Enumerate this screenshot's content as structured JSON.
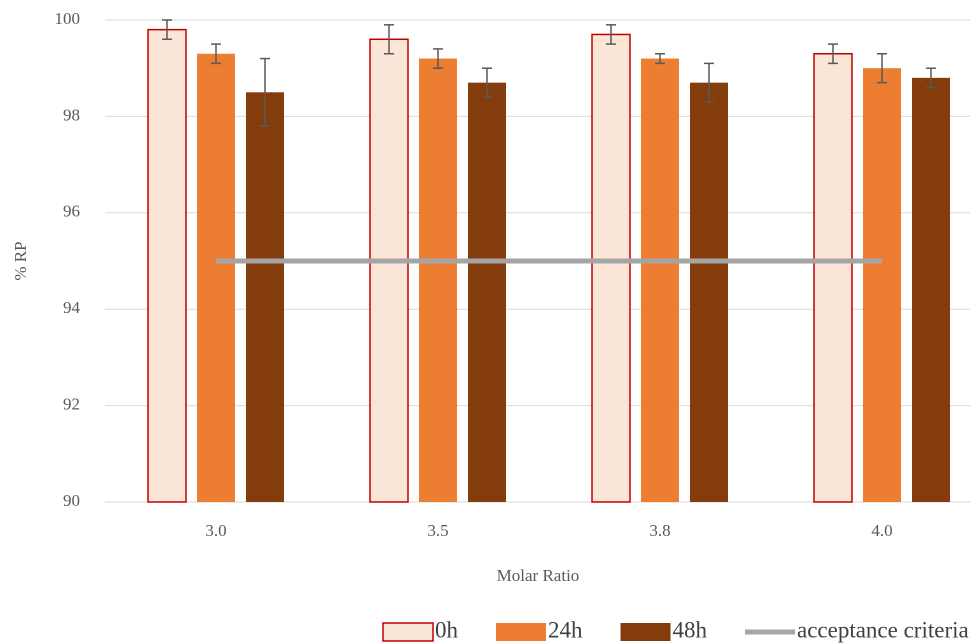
{
  "chart_data": {
    "type": "bar",
    "x_label": "Molar Ratio",
    "y_label": "% RP",
    "categories": [
      "3.0",
      "3.5",
      "3.8",
      "4.0"
    ],
    "series": [
      {
        "name": "0h",
        "type": "bar",
        "color": "#fbe5d6",
        "edge_color": "#c00000",
        "values": [
          99.8,
          99.6,
          99.7,
          99.3
        ],
        "errors": [
          0.2,
          0.3,
          0.2,
          0.2
        ]
      },
      {
        "name": "24h",
        "type": "bar",
        "color": "#ed7d31",
        "values": [
          99.3,
          99.2,
          99.2,
          99.0
        ],
        "errors": [
          0.2,
          0.2,
          0.1,
          0.3
        ]
      },
      {
        "name": "48h",
        "type": "bar",
        "color": "#843c0c",
        "values": [
          98.5,
          98.7,
          98.7,
          98.8
        ],
        "errors": [
          0.7,
          0.3,
          0.4,
          0.2
        ]
      },
      {
        "name": "acceptance criteria",
        "type": "line",
        "color": "#a5a5a5",
        "values": [
          95,
          95,
          95,
          95
        ]
      }
    ],
    "ylim": [
      90,
      100
    ],
    "yticks": [
      90,
      92,
      94,
      96,
      98,
      100
    ],
    "grid": true,
    "legend": "bottom"
  }
}
